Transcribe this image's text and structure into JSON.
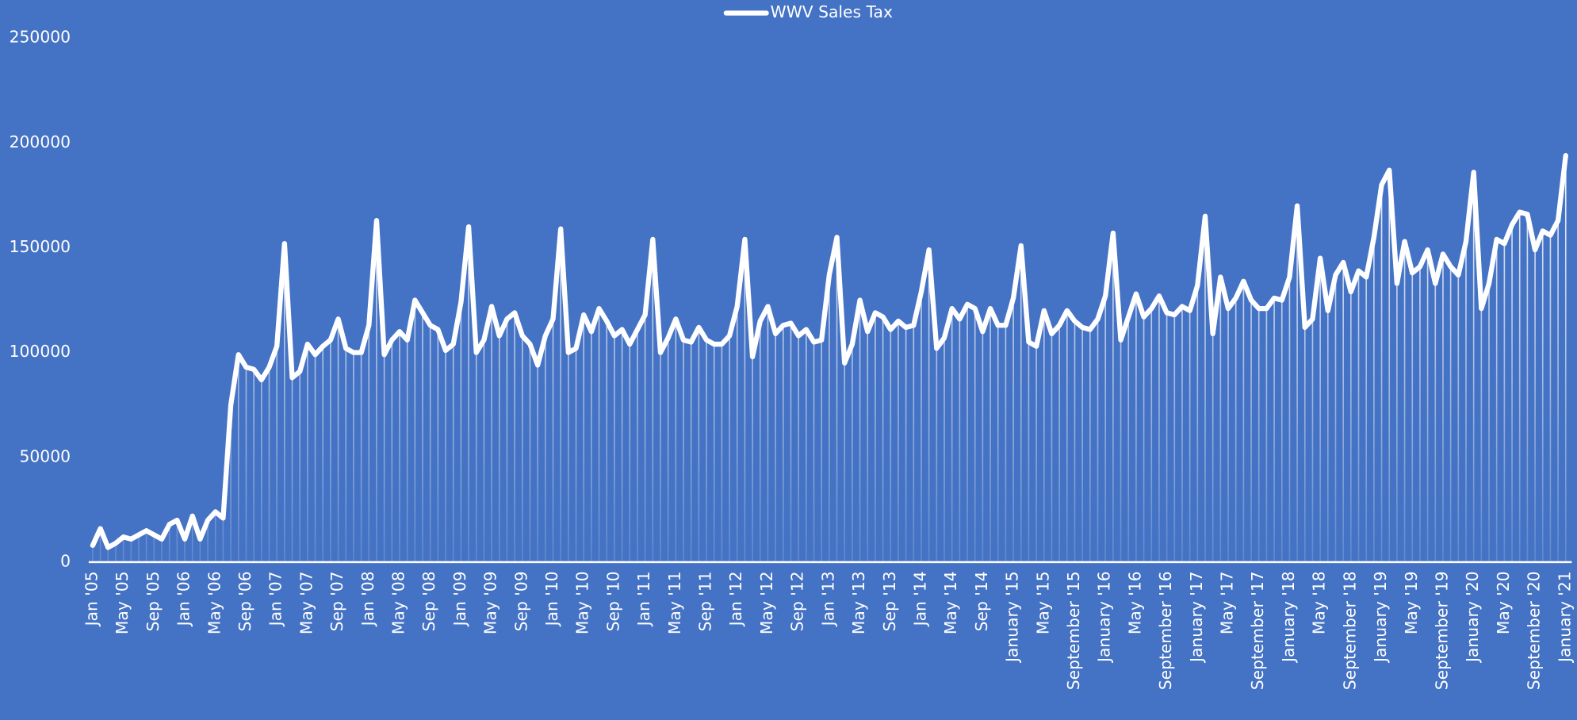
{
  "chart_data": {
    "type": "line",
    "series": [
      {
        "name": "WWV Sales Tax",
        "color": "#ffffff",
        "values": [
          8000,
          16000,
          7000,
          9000,
          12000,
          11000,
          13000,
          15000,
          13000,
          11000,
          18000,
          20000,
          11000,
          22000,
          11000,
          20000,
          24000,
          21000,
          75000,
          99000,
          93000,
          92000,
          87000,
          93000,
          103000,
          152000,
          88000,
          91000,
          104000,
          99000,
          103000,
          106000,
          116000,
          102000,
          100000,
          100000,
          113000,
          163000,
          99000,
          106000,
          110000,
          106000,
          125000,
          119000,
          113000,
          111000,
          101000,
          104000,
          124000,
          160000,
          100000,
          106000,
          122000,
          108000,
          116000,
          119000,
          108000,
          104000,
          94000,
          108000,
          116000,
          159000,
          100000,
          102000,
          118000,
          110000,
          121000,
          115000,
          108000,
          111000,
          104000,
          111000,
          118000,
          154000,
          100000,
          107000,
          116000,
          106000,
          105000,
          112000,
          106000,
          104000,
          104000,
          108000,
          122000,
          154000,
          98000,
          115000,
          122000,
          109000,
          113000,
          114000,
          108000,
          111000,
          105000,
          106000,
          137000,
          155000,
          95000,
          104000,
          125000,
          110000,
          119000,
          117000,
          111000,
          115000,
          112000,
          113000,
          129000,
          149000,
          102000,
          107000,
          121000,
          116000,
          123000,
          121000,
          110000,
          121000,
          113000,
          113000,
          126000,
          151000,
          105000,
          103000,
          120000,
          109000,
          113000,
          120000,
          115000,
          112000,
          111000,
          116000,
          127000,
          157000,
          106000,
          117000,
          128000,
          117000,
          121000,
          127000,
          119000,
          118000,
          122000,
          120000,
          132000,
          165000,
          109000,
          136000,
          121000,
          126000,
          134000,
          125000,
          121000,
          121000,
          126000,
          125000,
          136000,
          170000,
          112000,
          116000,
          145000,
          120000,
          137000,
          143000,
          129000,
          139000,
          136000,
          155000,
          180000,
          187000,
          133000,
          153000,
          138000,
          141000,
          149000,
          133000,
          147000,
          141000,
          137000,
          153000,
          186000,
          121000,
          133000,
          154000,
          152000,
          161000,
          167000,
          166000,
          149000,
          158000,
          156000,
          163000,
          194000
        ]
      }
    ],
    "categories": [
      "Jan '05",
      null,
      null,
      null,
      "May '05",
      null,
      null,
      null,
      "Sep '05",
      null,
      null,
      null,
      "Jan '06",
      null,
      null,
      null,
      "May '06",
      null,
      null,
      null,
      "Sep '06",
      null,
      null,
      null,
      "Jan '07",
      null,
      null,
      null,
      "May '07",
      null,
      null,
      null,
      "Sep '07",
      null,
      null,
      null,
      "Jan '08",
      null,
      null,
      null,
      "May '08",
      null,
      null,
      null,
      "Sep '08",
      null,
      null,
      null,
      "Jan '09",
      null,
      null,
      null,
      "May '09",
      null,
      null,
      null,
      "Sep '09",
      null,
      null,
      null,
      "Jan '10",
      null,
      null,
      null,
      "May '10",
      null,
      null,
      null,
      "Sep '10",
      null,
      null,
      null,
      "Jan '11",
      null,
      null,
      null,
      "May '11",
      null,
      null,
      null,
      "Sep '11",
      null,
      null,
      null,
      "Jan '12",
      null,
      null,
      null,
      "May '12",
      null,
      null,
      null,
      "Sep '12",
      null,
      null,
      null,
      "Jan '13",
      null,
      null,
      null,
      "May '13",
      null,
      null,
      null,
      "Sep '13",
      null,
      null,
      null,
      "Jan '14",
      null,
      null,
      null,
      "May '14",
      null,
      null,
      null,
      "Sep '14",
      null,
      null,
      null,
      "January '15",
      null,
      null,
      null,
      "May '15",
      null,
      null,
      null,
      "September '15",
      null,
      null,
      null,
      "January '16",
      null,
      null,
      null,
      "May '16",
      null,
      null,
      null,
      "September '16",
      null,
      null,
      null,
      "January '17",
      null,
      null,
      null,
      "May '17",
      null,
      null,
      null,
      "September '17",
      null,
      null,
      null,
      "January '18",
      null,
      null,
      null,
      "May '18",
      null,
      null,
      null,
      "September '18",
      null,
      null,
      null,
      "January '19",
      null,
      null,
      null,
      "May '19",
      null,
      null,
      null,
      "September '19",
      null,
      null,
      null,
      "January '20",
      null,
      null,
      null,
      "May '20",
      null,
      null,
      null,
      "September '20",
      null,
      null,
      null,
      "January '21"
    ],
    "ylim": [
      0,
      250000
    ],
    "yticks": [
      0,
      50000,
      100000,
      150000,
      200000,
      250000
    ],
    "grid": false,
    "legend": "top",
    "background": "#4472c4"
  }
}
